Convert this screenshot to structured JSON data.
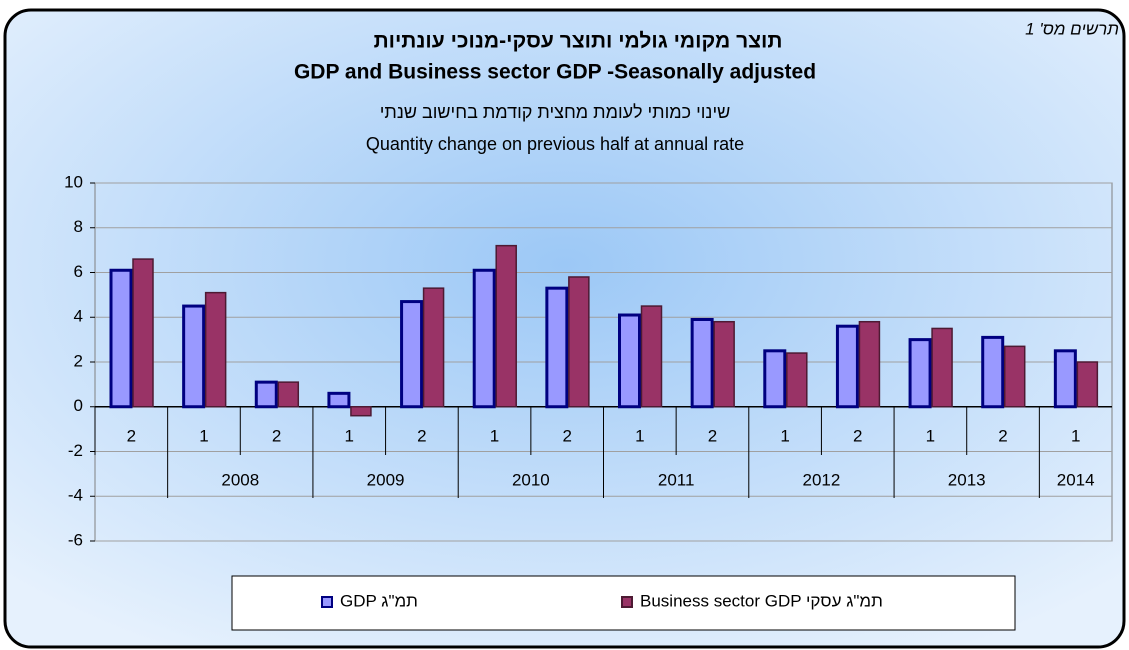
{
  "chart_data": {
    "type": "bar",
    "corner_label": "תרשים מס' 1",
    "title": "תוצר מקומי גולמי ותוצר עסקי-מנוכי עונתיות",
    "title_en": "GDP and Business sector GDP -Seasonally adjusted",
    "subtitle": "שינוי כמותי לעומת מחצית קודמת בחישוב שנתי",
    "subtitle_en": "Quantity change on previous half at annual rate",
    "categories": [
      "2",
      "1",
      "2",
      "1",
      "2",
      "1",
      "2",
      "1",
      "2",
      "1",
      "2",
      "1",
      "2",
      "1"
    ],
    "category_years": [
      null,
      "2008",
      "2008",
      "2009",
      "2009",
      "2010",
      "2010",
      "2011",
      "2011",
      "2012",
      "2012",
      "2013",
      "2013",
      "2014"
    ],
    "series": [
      {
        "name": "GDP  תמ\"ג",
        "color": "#9999ff",
        "edge": "#000080",
        "values": [
          6.1,
          4.5,
          1.1,
          0.6,
          4.7,
          6.1,
          5.3,
          4.1,
          3.9,
          2.5,
          3.6,
          3.0,
          3.1,
          2.5
        ]
      },
      {
        "name": "Business sector GDP  תמ\"ג עסקי",
        "color": "#993366",
        "edge": "#4d1a33",
        "values": [
          6.6,
          5.1,
          1.1,
          -0.4,
          5.3,
          7.2,
          5.8,
          4.5,
          3.8,
          2.4,
          3.8,
          3.5,
          2.7,
          2.0
        ]
      }
    ],
    "ylim": [
      -6,
      10
    ],
    "yticks": [
      -6,
      -4,
      -2,
      0,
      2,
      4,
      6,
      8,
      10
    ],
    "grid": true
  }
}
